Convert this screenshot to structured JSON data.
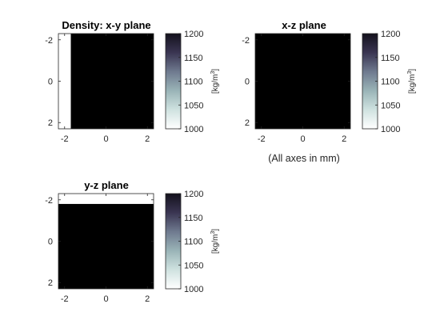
{
  "figure": {
    "note": "(All axes in mm)"
  },
  "colorbar": {
    "ticks": [
      "1200",
      "1150",
      "1100",
      "1050",
      "1000"
    ],
    "label_base": "[kg/m",
    "label_exp": "3",
    "label_close": "]"
  },
  "colors": {
    "background": "#ffffff",
    "fill_low": "#ffffff",
    "fill_high": "#000000",
    "axis": "#262626",
    "colormap_stops": [
      "#ffffff",
      "#cfe2e0",
      "#9ab4b7",
      "#6f7a8f",
      "#3a3552",
      "#14121d"
    ]
  },
  "chart_data": [
    {
      "type": "heatmap",
      "title": "Density: x-y plane",
      "x_ticks": [
        "-2",
        "0",
        "2"
      ],
      "y_ticks": [
        "-2",
        "0",
        "2"
      ],
      "xlim": [
        -2.3,
        2.3
      ],
      "ylim": [
        -2.3,
        2.3
      ],
      "y_reversed": true,
      "clim": [
        1000,
        1200
      ],
      "colorbar_label": "[kg/m^3]",
      "regions": [
        {
          "x": [
            -2.3,
            -1.7
          ],
          "y": [
            -2.3,
            2.3
          ],
          "value": 1000
        },
        {
          "x": [
            -1.7,
            2.3
          ],
          "y": [
            -2.3,
            2.3
          ],
          "value": 1200
        }
      ]
    },
    {
      "type": "heatmap",
      "title": "x-z plane",
      "x_ticks": [
        "-2",
        "0",
        "2"
      ],
      "y_ticks": [
        "-2",
        "0",
        "2"
      ],
      "xlim": [
        -2.3,
        2.3
      ],
      "ylim": [
        -2.3,
        2.3
      ],
      "y_reversed": true,
      "clim": [
        1000,
        1200
      ],
      "colorbar_label": "[kg/m^3]",
      "regions": [
        {
          "x": [
            -2.3,
            2.3
          ],
          "y": [
            -2.3,
            2.3
          ],
          "value": 1200
        }
      ]
    },
    {
      "type": "heatmap",
      "title": "y-z plane",
      "x_ticks": [
        "-2",
        "0",
        "2"
      ],
      "y_ticks": [
        "-2",
        "0",
        "2"
      ],
      "xlim": [
        -2.3,
        2.3
      ],
      "ylim": [
        -2.3,
        2.3
      ],
      "y_reversed": true,
      "clim": [
        1000,
        1200
      ],
      "colorbar_label": "[kg/m^3]",
      "regions": [
        {
          "x": [
            -2.3,
            2.3
          ],
          "y": [
            -2.3,
            -1.8
          ],
          "value": 1000
        },
        {
          "x": [
            -2.3,
            2.3
          ],
          "y": [
            -1.8,
            2.3
          ],
          "value": 1200
        }
      ]
    }
  ]
}
